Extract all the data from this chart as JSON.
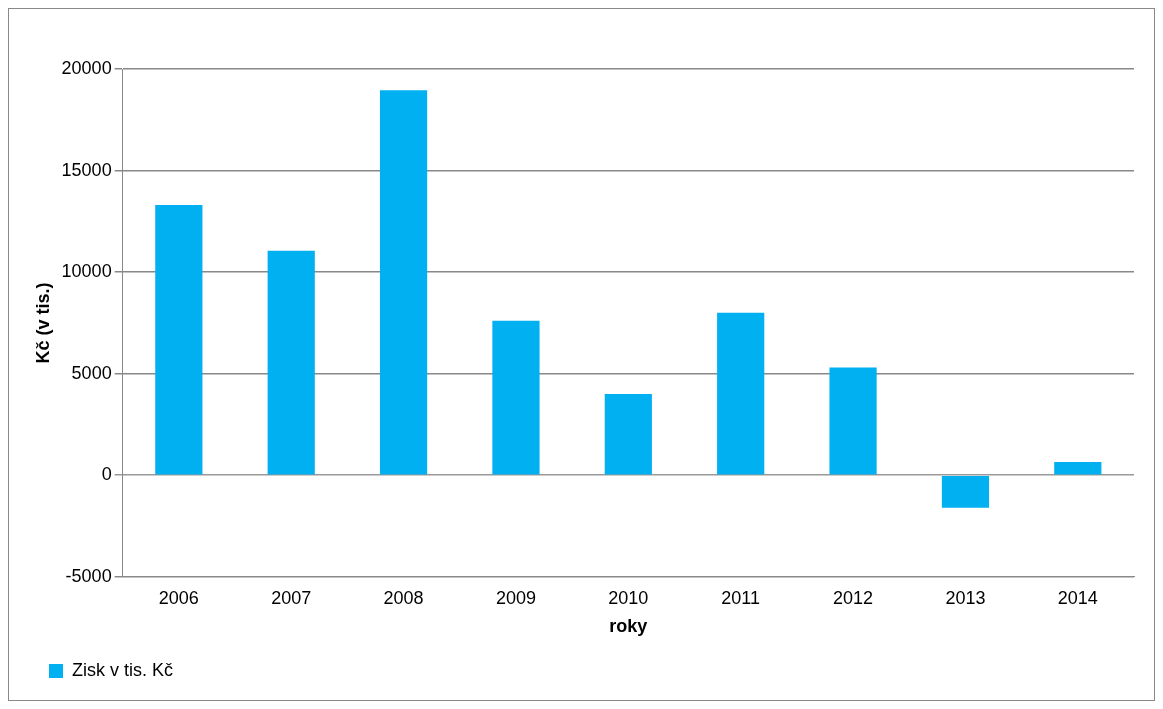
{
  "chart_data": {
    "type": "bar",
    "xlabel": "roky",
    "ylabel": "Kč (v tis.)",
    "categories": [
      "2006",
      "2007",
      "2008",
      "2009",
      "2010",
      "2011",
      "2012",
      "2013",
      "2014"
    ],
    "series": [
      {
        "name": "Zisk v tis. Kč",
        "color": "#00b0f0",
        "values": [
          13300,
          11050,
          18950,
          7600,
          4000,
          8000,
          5300,
          -1600,
          650
        ]
      }
    ],
    "ylim": [
      -5000,
      20000
    ],
    "yticks": [
      -5000,
      0,
      5000,
      10000,
      15000,
      20000
    ],
    "grid": "y",
    "legend": "bottom left"
  }
}
